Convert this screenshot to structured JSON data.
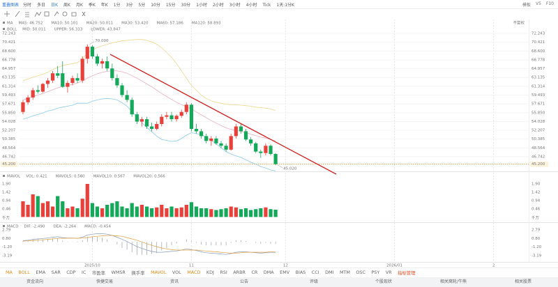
{
  "toolbar": {
    "title": "重叠图表",
    "tabs": [
      "分时",
      "多日",
      "日K",
      "周K",
      "月K",
      "季K",
      "年K",
      "1分",
      "3分",
      "5分",
      "10分",
      "15分",
      "30分",
      "1小时",
      "2小时",
      "3小时",
      "4小时",
      "Tick",
      "1天:1分K"
    ],
    "right": [
      "模板",
      "V5",
      "F10"
    ]
  },
  "chart_data": [
    {
      "type": "candlestick",
      "adjustment": "不复权",
      "grid": true,
      "indicators": [
        {
          "name": "MA",
          "items": [
            {
              "text": "MA5: 46.752",
              "color": "#e09a2a"
            },
            {
              "text": "MA10: 50.101",
              "color": "#d9a0c0"
            },
            {
              "text": "MA20: 50.011",
              "color": "#c8d8f0"
            },
            {
              "text": "MA30: 53.420",
              "color": "#f0d0b0"
            },
            {
              "text": "MA60: 57.186",
              "color": "#f0e0a0"
            },
            {
              "text": "MA120: 58.893",
              "color": "#d8d0f0"
            }
          ]
        },
        {
          "name": "BOLL",
          "items": [
            {
              "text": "MID: 50.011",
              "color": "#e6a0b8"
            },
            {
              "text": "UPPER: 56.333",
              "color": "#e0b840"
            },
            {
              "text": "LOWER: 43.847",
              "color": "#4aa0d8"
            }
          ]
        }
      ],
      "xlim": [
        -0.7,
        102.1
      ],
      "xticks": [
        {
          "value": 14,
          "label": "2025/10"
        },
        {
          "value": 34,
          "label": "11"
        },
        {
          "value": 53,
          "label": "12"
        },
        {
          "value": 75,
          "label": "2026/01"
        },
        {
          "value": 95,
          "label": "2"
        }
      ],
      "ylim": [
        43.85,
        75.13
      ],
      "yticks": [
        72.243,
        70.421,
        {
          "value": 68.6,
          "label": "68.600"
        },
        66.778,
        64.957,
        63.135,
        61.314,
        59.493,
        57.671,
        {
          "value": 55.85,
          "label": "55.850"
        },
        54.028,
        52.207,
        50.385,
        48.564,
        46.742,
        {
          "value": 45.2,
          "label": "45.200"
        }
      ],
      "up_color": "#e8403a",
      "down_color": "#14a85a",
      "open": [
        56,
        58,
        59,
        60.5,
        60.2,
        61.8,
        62.5,
        64,
        64,
        61.2,
        62,
        63,
        62.5,
        67,
        69.5,
        67.5,
        66,
        66.5,
        65,
        63,
        61.5,
        59.5,
        58.5,
        55.5,
        54,
        54.5,
        53,
        52.5,
        53.5,
        55,
        55.3,
        54.5,
        55.2,
        56,
        57.5,
        52.5,
        52,
        51,
        50,
        50.5,
        49.5,
        49,
        48.2,
        51,
        53,
        52,
        50.3,
        49.5,
        47.8,
        47.5,
        49,
        47.3
      ],
      "high": [
        58.5,
        59.5,
        61,
        61.5,
        62,
        63,
        64.5,
        65.5,
        66.5,
        62.5,
        63.5,
        64,
        67.5,
        70,
        69.8,
        68,
        67,
        67.5,
        66,
        63.8,
        62,
        60.5,
        59,
        56,
        55,
        55,
        53.8,
        54,
        55.5,
        56,
        56,
        55.5,
        56.5,
        58,
        57.8,
        53.5,
        52.5,
        51.5,
        51,
        51,
        50,
        49.5,
        51.5,
        53.5,
        53.5,
        52.5,
        50.8,
        49.8,
        48.2,
        49.5,
        49.3,
        47.5
      ],
      "low": [
        55.5,
        57.5,
        58.5,
        59.8,
        60,
        61,
        62,
        63,
        61,
        60,
        61.5,
        62,
        62,
        66,
        67,
        65.5,
        65,
        64.5,
        62.5,
        61,
        59,
        58,
        55,
        53.5,
        53,
        52.5,
        52,
        52.2,
        53,
        54.5,
        54,
        54,
        54.8,
        55.5,
        52,
        51.5,
        50.5,
        49.5,
        49,
        49.2,
        48.5,
        47.8,
        48,
        50.5,
        51.5,
        50,
        49,
        47.5,
        46.5,
        47,
        47,
        45.02
      ],
      "close": [
        58,
        59,
        60.5,
        60.2,
        61.8,
        62.5,
        64,
        63.5,
        61.2,
        62,
        63,
        62.5,
        67,
        69.5,
        67.5,
        66,
        66.5,
        65,
        63,
        61.5,
        59.5,
        58.5,
        55.5,
        54,
        54.5,
        53,
        52.5,
        53.5,
        55,
        55.3,
        54.5,
        55.2,
        56,
        57.5,
        52.5,
        52,
        51,
        50,
        50.5,
        49.5,
        49,
        48.2,
        51,
        53,
        52,
        50.3,
        49.5,
        47.8,
        47.5,
        49,
        47.3,
        45.2
      ],
      "high_label": "70.000",
      "low_label": "45.020",
      "series": [
        {
          "color": "#ecd890",
          "values": [
            62.5,
            62.8,
            63.2,
            63.5,
            63.8,
            64.2,
            64.8,
            65.2,
            65.6,
            65.8,
            66,
            66.2,
            67,
            68.2,
            68.8,
            69.3,
            69.7,
            70,
            70.3,
            70.5,
            70.7,
            70.8,
            70.9,
            71,
            71,
            70.8,
            70.5,
            70,
            69.3,
            68.3,
            67.3,
            66,
            64.5,
            63,
            61.5,
            60.5,
            59.5,
            58.8,
            58.3,
            58,
            57.8,
            57.6,
            57.5,
            57.5,
            57.4,
            57.3,
            57.2,
            57,
            56.9,
            56.8,
            56.6,
            56.3
          ]
        },
        {
          "color": "#eab0c4",
          "values": [
            58.5,
            58.8,
            59.2,
            59.5,
            59.8,
            60.2,
            60.6,
            61,
            61.3,
            61.5,
            61.7,
            62,
            62.4,
            63,
            63.5,
            63.9,
            64.2,
            64.4,
            64.5,
            64.5,
            64.3,
            64,
            63.5,
            63,
            62.4,
            61.8,
            61.2,
            60.5,
            59.8,
            59.2,
            58.6,
            58,
            57.5,
            57.1,
            56.6,
            56,
            55.4,
            54.8,
            54.2,
            53.7,
            53.2,
            52.7,
            52.4,
            52.2,
            52,
            51.7,
            51.4,
            51.1,
            50.8,
            50.6,
            50.3,
            50
          ]
        },
        {
          "color": "#8ccbe6",
          "values": [
            54.5,
            54.8,
            55.2,
            55.5,
            55.8,
            56.2,
            56.4,
            56.8,
            57,
            57.2,
            57.4,
            57.8,
            57.8,
            57.8,
            58.2,
            58.5,
            58.7,
            58.8,
            58.7,
            58.5,
            57.9,
            57.2,
            56.1,
            55,
            53.8,
            52.8,
            51.9,
            51,
            50.3,
            50.1,
            49.9,
            50,
            50.5,
            51.2,
            51.7,
            51.5,
            51.3,
            50.8,
            50.1,
            49.4,
            48.6,
            47.8,
            47.3,
            46.9,
            46.6,
            46.1,
            45.6,
            45.2,
            44.7,
            44.4,
            44,
            43.8
          ]
        }
      ]
    },
    {
      "type": "bar",
      "unit": "千万",
      "indicators": [
        {
          "name": "MAVOL",
          "items": [
            {
              "text": "VOL: 0.421",
              "color": "#e05a5a"
            },
            {
              "text": "MAVOL5: 0.560",
              "color": "#e09a2a"
            },
            {
              "text": "MAVOL10: 0.567",
              "color": "#c8d8f0"
            },
            {
              "text": "MAVOL20: 0.566",
              "color": "#d070c0"
            }
          ]
        }
      ],
      "ylim": [
        -0.26,
        2.54
      ],
      "yticks": [
        {
          "value": 1.9,
          "label": "1.90"
        },
        1.42,
        0.94,
        0.46
      ],
      "values": [
        0.9,
        0.7,
        1.3,
        1.2,
        0.8,
        0.9,
        0.6,
        1.2,
        0.9,
        0.5,
        0.6,
        0.5,
        1.05,
        1.9,
        0.8,
        0.6,
        0.5,
        0.7,
        0.8,
        0.9,
        0.6,
        0.5,
        0.8,
        0.6,
        0.7,
        0.6,
        0.5,
        0.55,
        0.7,
        0.5,
        0.6,
        0.5,
        0.55,
        0.7,
        0.85,
        0.6,
        0.5,
        0.5,
        0.45,
        0.4,
        0.45,
        0.5,
        0.6,
        0.55,
        0.45,
        0.5,
        0.4,
        0.45,
        0.5,
        0.55,
        0.45,
        0.421
      ]
    },
    {
      "type": "macd",
      "bar_color": "#9aa0a8",
      "indicators": [
        {
          "name": "MACD",
          "items": [
            {
              "text": "DIF: -2.490",
              "color": "#8a9cb8"
            },
            {
              "text": "DEA: -2.264",
              "color": "#e0a040"
            },
            {
              "text": "MACD: -0.454",
              "color": "#d070c0"
            }
          ]
        }
      ],
      "ylim": [
        -4.64,
        4.41
      ],
      "yticks": [
        2.79,
        {
          "value": 0.8,
          "label": "0.80"
        },
        {
          "value": -1.2,
          "label": "-1.20"
        },
        -3.19
      ],
      "values": [
        0.2,
        0.3,
        0.6,
        0.6,
        0.6,
        0.6,
        0.8,
        0.8,
        0.3,
        0.08,
        0.06,
        -0.12,
        0.4,
        1.2,
        1.2,
        1.2,
        1,
        0.6,
        0,
        -0.6,
        -1.4,
        -1.8,
        -2.4,
        -3,
        -3,
        -3,
        -2.8,
        -2.6,
        -2,
        -1.4,
        -0.8,
        -0.4,
        0,
        0.6,
        0.2,
        -0.2,
        -0.6,
        -0.8,
        -0.8,
        -0.8,
        -0.8,
        -0.8,
        -0.2,
        0.4,
        0.4,
        0.2,
        0,
        -0.2,
        -0.4,
        -0.2,
        -0.4,
        -0.454
      ],
      "series": [
        {
          "color": "#8a9cb8",
          "values": [
            0.3,
            0.4,
            0.6,
            0.7,
            0.8,
            0.9,
            1.1,
            1.2,
            1,
            0.9,
            0.9,
            0.8,
            1.1,
            1.6,
            1.8,
            1.9,
            1.9,
            1.8,
            1.5,
            1.1,
            0.6,
            0.1,
            -0.5,
            -1.1,
            -1.5,
            -1.9,
            -2.2,
            -2.4,
            -2.4,
            -2.3,
            -2.2,
            -2.1,
            -1.9,
            -1.6,
            -1.8,
            -2,
            -2.3,
            -2.5,
            -2.6,
            -2.7,
            -2.8,
            -2.9,
            -2.7,
            -2.4,
            -2.3,
            -2.3,
            -2.4,
            -2.5,
            -2.6,
            -2.5,
            -2.5,
            -2.49
          ]
        },
        {
          "color": "#e0a040",
          "values": [
            0.2,
            0.25,
            0.3,
            0.4,
            0.5,
            0.6,
            0.7,
            0.8,
            0.85,
            0.86,
            0.87,
            0.86,
            0.9,
            1,
            1.2,
            1.3,
            1.4,
            1.5,
            1.5,
            1.4,
            1.3,
            1,
            0.7,
            0.4,
            0,
            -0.4,
            -0.8,
            -1.1,
            -1.4,
            -1.6,
            -1.8,
            -1.9,
            -1.9,
            -1.9,
            -1.9,
            -1.9,
            -2,
            -2.1,
            -2.2,
            -2.3,
            -2.4,
            -2.5,
            -2.6,
            -2.6,
            -2.5,
            -2.4,
            -2.4,
            -2.4,
            -2.4,
            -2.4,
            -2.3,
            -2.264
          ]
        }
      ]
    }
  ],
  "indicator_bar": {
    "items": [
      {
        "text": "MA",
        "active": true
      },
      {
        "text": "BOLL",
        "active": true
      },
      {
        "text": "EMA",
        "active": false
      },
      {
        "text": "SAR",
        "active": false
      },
      {
        "text": "CDP",
        "active": false
      },
      {
        "text": "IC",
        "active": false
      },
      {
        "text": "市盈率",
        "active": false
      },
      {
        "text": "WMSR",
        "active": false
      },
      {
        "text": "换手率",
        "active": false
      },
      {
        "text": "MAVOL",
        "active": true
      },
      {
        "text": "VOL",
        "active": false
      },
      {
        "text": "MACD",
        "active": true
      },
      {
        "text": "KDJ",
        "active": false
      },
      {
        "text": "RSI",
        "active": false
      },
      {
        "text": "ARBR",
        "active": false
      },
      {
        "text": "CR",
        "active": false
      },
      {
        "text": "DMA",
        "active": false
      },
      {
        "text": "EMV",
        "active": false
      },
      {
        "text": "BIAS",
        "active": false
      },
      {
        "text": "CCI",
        "active": false
      },
      {
        "text": "DMI",
        "active": false
      },
      {
        "text": "MTM",
        "active": false
      },
      {
        "text": "OSC",
        "active": false
      },
      {
        "text": "PSY",
        "active": false
      },
      {
        "text": "VR",
        "active": false
      }
    ],
    "manage": "指标管理"
  },
  "nav": [
    "资金流向",
    "快捷交易",
    "资讯",
    "公告",
    "评级",
    "个股现状",
    "相关窝轮/牛熊",
    "相关股票"
  ]
}
